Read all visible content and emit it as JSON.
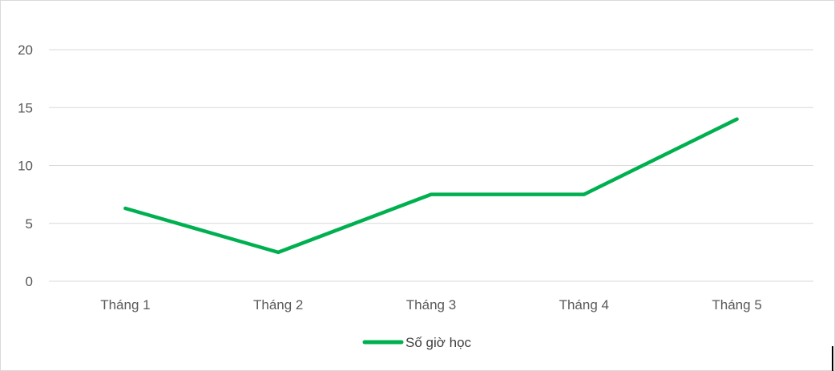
{
  "chart_data": {
    "type": "line",
    "categories": [
      "Tháng 1",
      "Tháng 2",
      "Tháng 3",
      "Tháng 4",
      "Tháng 5"
    ],
    "series": [
      {
        "name": "Số giờ học",
        "values": [
          6.3,
          2.5,
          7.5,
          7.5,
          14
        ],
        "color": "#00b050"
      }
    ],
    "title": "",
    "xlabel": "",
    "ylabel": "",
    "ylim": [
      0,
      20
    ],
    "yticks": [
      "0",
      "5",
      "10",
      "15",
      "20"
    ],
    "grid": true,
    "legend_position": "bottom",
    "gridline_color": "#d9d9d9",
    "text_color": "#595959"
  }
}
